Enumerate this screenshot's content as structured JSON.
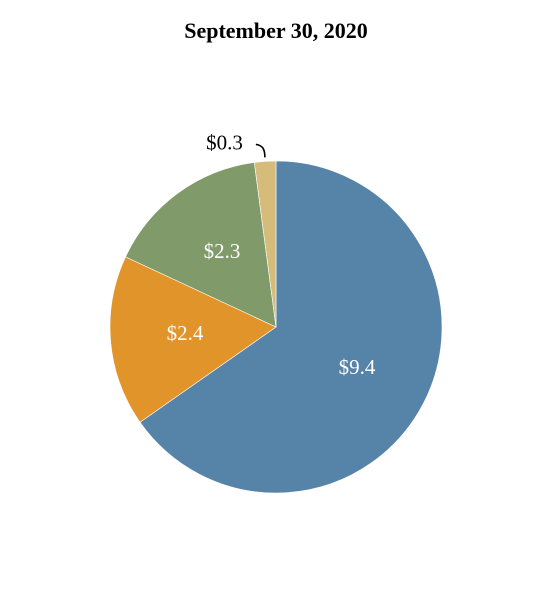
{
  "chart_data": {
    "type": "pie",
    "title": "September 30, 2020",
    "categories": [
      "",
      "",
      "",
      ""
    ],
    "values": [
      9.4,
      2.4,
      2.3,
      0.3
    ],
    "labels": [
      "$9.4",
      "$2.4",
      "$2.3",
      "$0.3"
    ],
    "colors": [
      "#5683a8",
      "#e09429",
      "#819a69",
      "#d5bc7a"
    ],
    "label_colors": [
      "#ffffff",
      "#ffffff",
      "#ffffff",
      "#000000"
    ],
    "start_angle": "12 o'clock",
    "direction": "clockwise",
    "legend": "none"
  }
}
